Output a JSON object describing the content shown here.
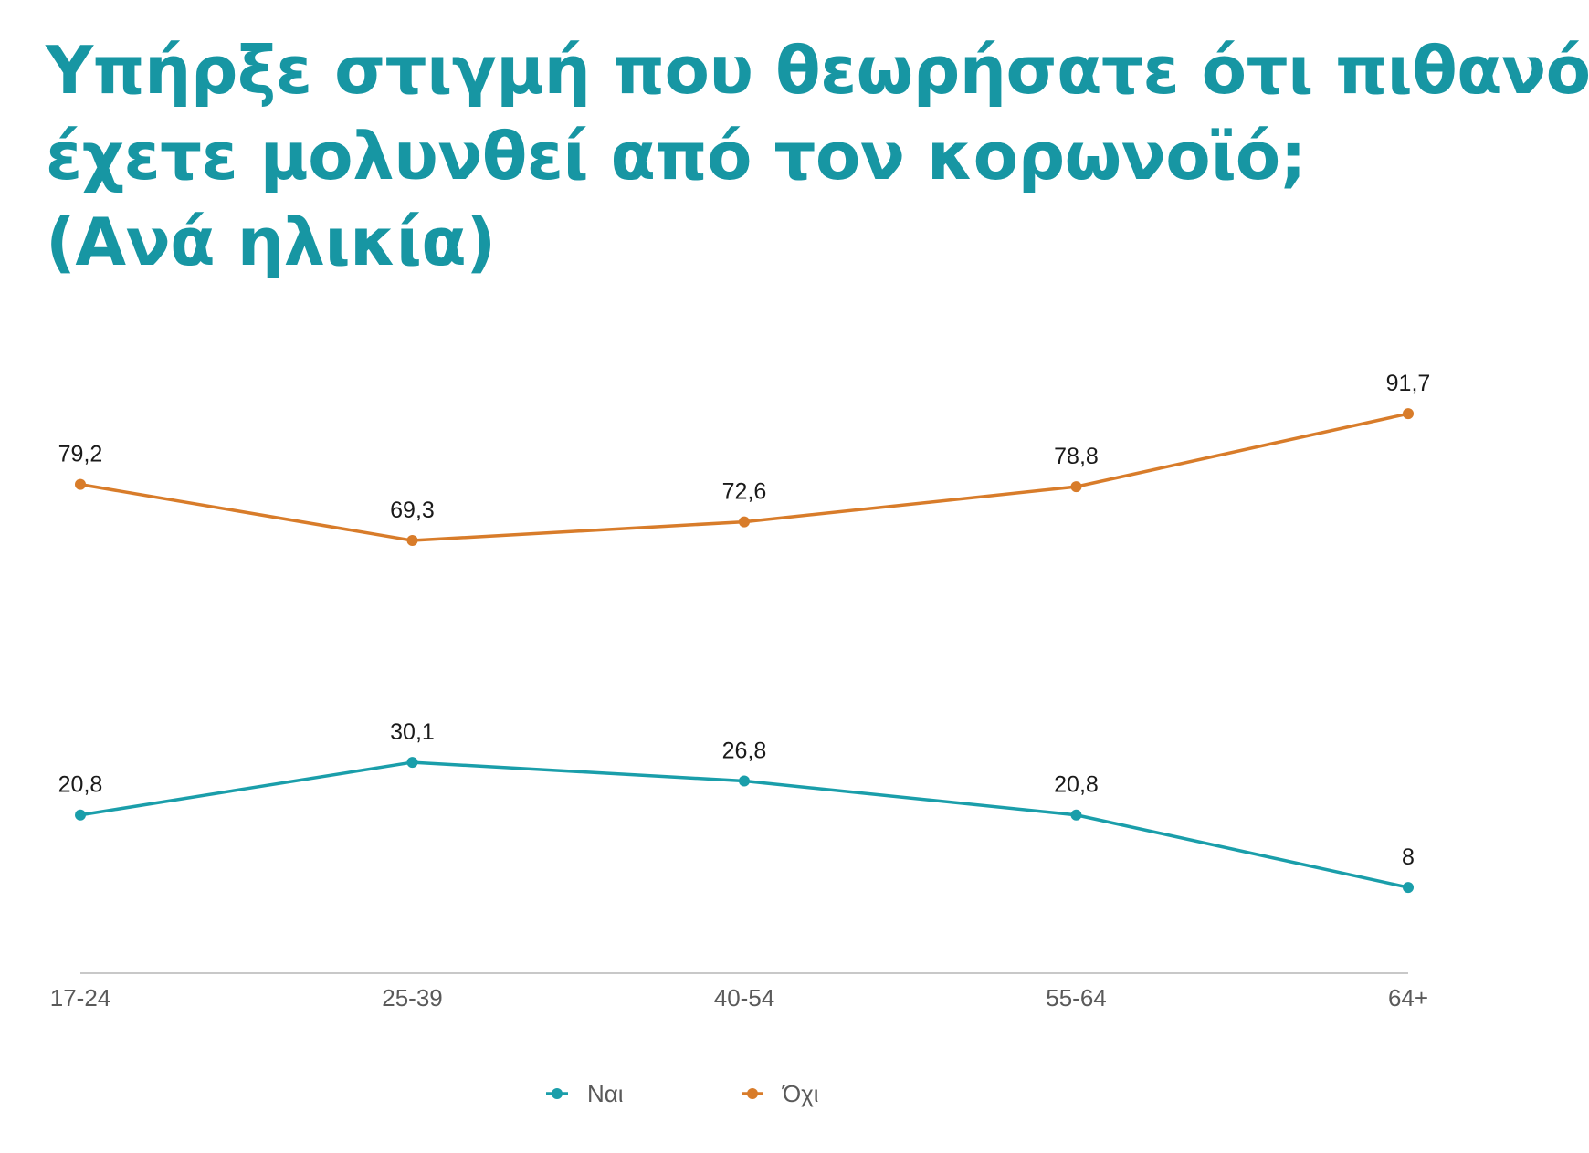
{
  "title_lines": [
    "Υπήρξε στιγμή που θεωρήσατε ότι πιθανόν",
    "έχετε μολυνθεί από τον κορωνοϊό;",
    "(Ανά ηλικία)"
  ],
  "colors": {
    "title": "#1796a3",
    "nai": "#1a9eaa",
    "oxi": "#d87c2a",
    "axis": "#b5b5b5"
  },
  "chart_data": {
    "type": "line",
    "categories": [
      "17-24",
      "25-39",
      "40-54",
      "55-64",
      "64+"
    ],
    "series": [
      {
        "name": "Ναι",
        "color": "#1a9eaa",
        "values": [
          20.8,
          30.1,
          26.8,
          20.8,
          8
        ],
        "labels": [
          "20,8",
          "30,1",
          "26,8",
          "20,8",
          "8"
        ]
      },
      {
        "name": "Όχι",
        "color": "#d87c2a",
        "values": [
          79.2,
          69.3,
          72.6,
          78.8,
          91.7
        ],
        "labels": [
          "79,2",
          "69,3",
          "72,6",
          "78,8",
          "91,7"
        ]
      }
    ],
    "legend_position": "bottom",
    "grid": false
  }
}
